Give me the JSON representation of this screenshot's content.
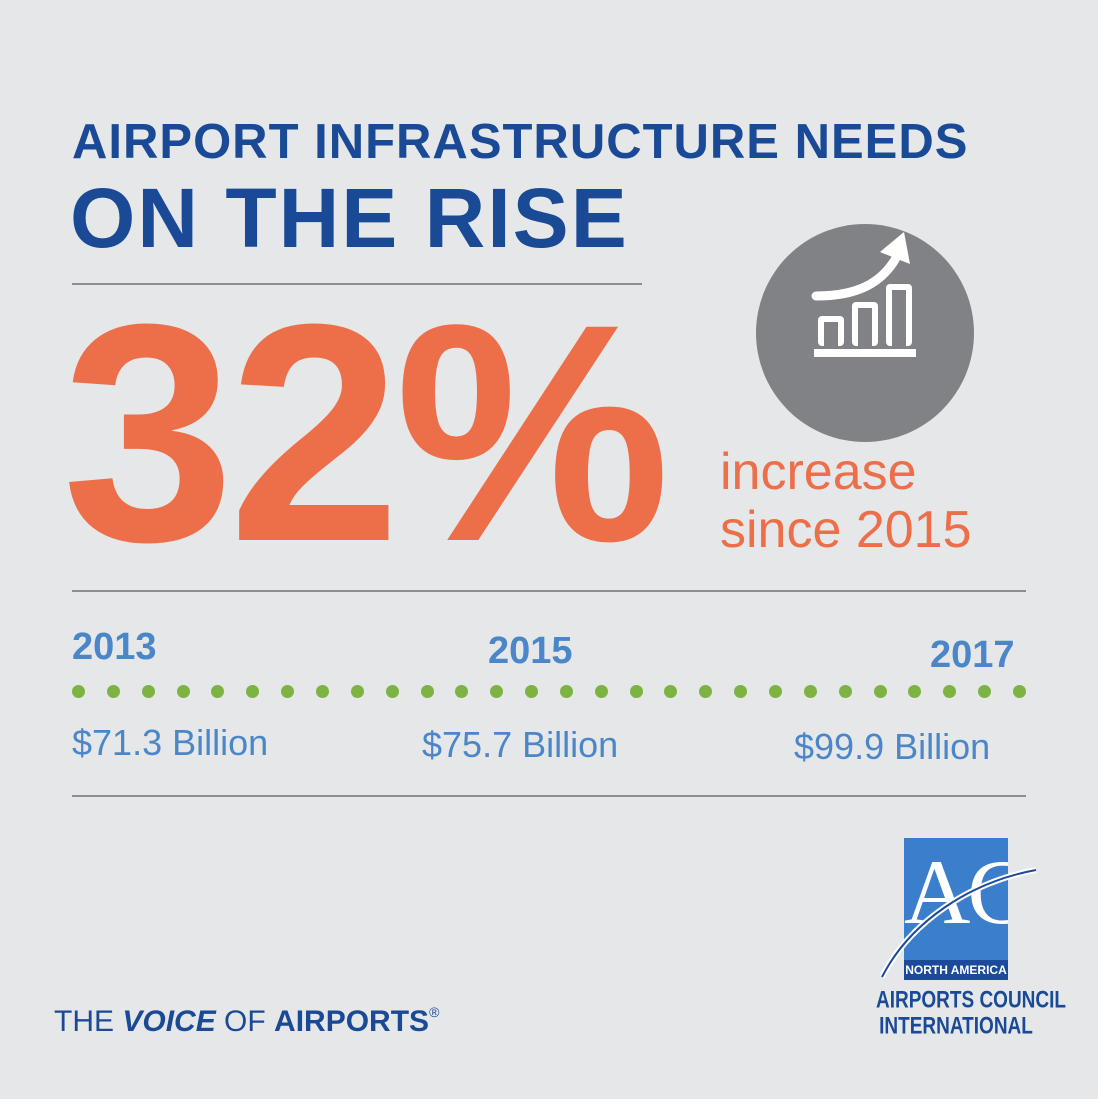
{
  "headline": {
    "line1": "AIRPORT INFRASTRUCTURE NEEDS",
    "line2": "ON THE RISE"
  },
  "stat": {
    "value": "32%",
    "caption_line1": "increase",
    "caption_line2": "since 2015"
  },
  "timeline": [
    {
      "year": "2013",
      "amount": "$71.3 Billion"
    },
    {
      "year": "2015",
      "amount": "$75.7 Billion"
    },
    {
      "year": "2017",
      "amount": "$99.9 Billion"
    }
  ],
  "footer": {
    "tagline_the": "THE ",
    "tagline_voice": "VOICE",
    "tagline_of": " OF ",
    "tagline_airports": "AIRPORTS",
    "tagline_reg": "®"
  },
  "logo": {
    "monogram": "ACI",
    "region": "NORTH AMERICA",
    "org_line1": "AIRPORTS COUNCIL",
    "org_line2": "INTERNATIONAL"
  },
  "colors": {
    "background": "#e6e7e8",
    "navy": "#1a4a96",
    "orange": "#ec6f49",
    "light_blue": "#4a86c8",
    "green_dots": "#7cb342",
    "icon_gray": "#808285"
  },
  "icons": {
    "growth": "bar-chart-rising-arrow-icon"
  }
}
